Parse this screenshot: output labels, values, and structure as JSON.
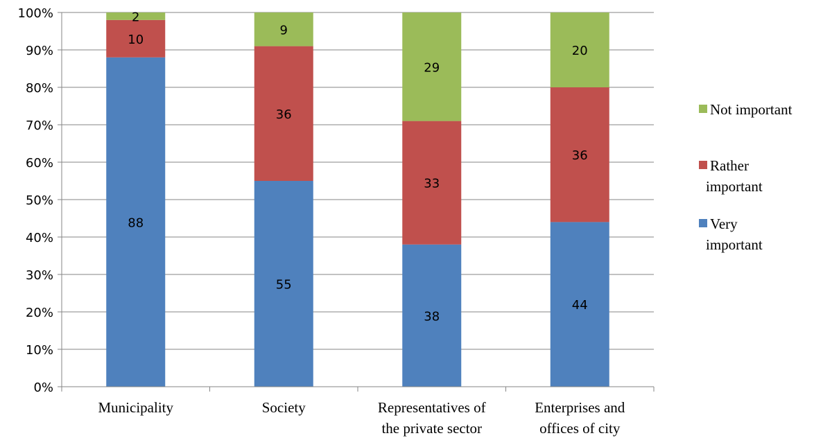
{
  "chart_data": {
    "type": "bar",
    "stacked": true,
    "percent_scale": true,
    "categories": [
      [
        "Municipality"
      ],
      [
        "Society"
      ],
      [
        "Representatives of",
        "the private sector"
      ],
      [
        "Enterprises and",
        "offices of city"
      ]
    ],
    "series": [
      {
        "name": "Very important",
        "legend_lines": [
          "Very",
          "important"
        ],
        "color": "#4F81BD",
        "values": [
          88,
          55,
          38,
          44
        ]
      },
      {
        "name": "Rather important",
        "legend_lines": [
          "Rather",
          "important"
        ],
        "color": "#C0504D",
        "values": [
          10,
          36,
          33,
          36
        ]
      },
      {
        "name": "Not important",
        "legend_lines": [
          "Not important"
        ],
        "color": "#9BBB59",
        "values": [
          2,
          9,
          29,
          20
        ]
      }
    ],
    "y_ticks": [
      "0%",
      "10%",
      "20%",
      "30%",
      "40%",
      "50%",
      "60%",
      "70%",
      "80%",
      "90%",
      "100%"
    ],
    "ylim": [
      0,
      100
    ],
    "grid": true,
    "gridline_color": "#868686",
    "legend_position": "right",
    "title": "",
    "xlabel": "",
    "ylabel": ""
  }
}
